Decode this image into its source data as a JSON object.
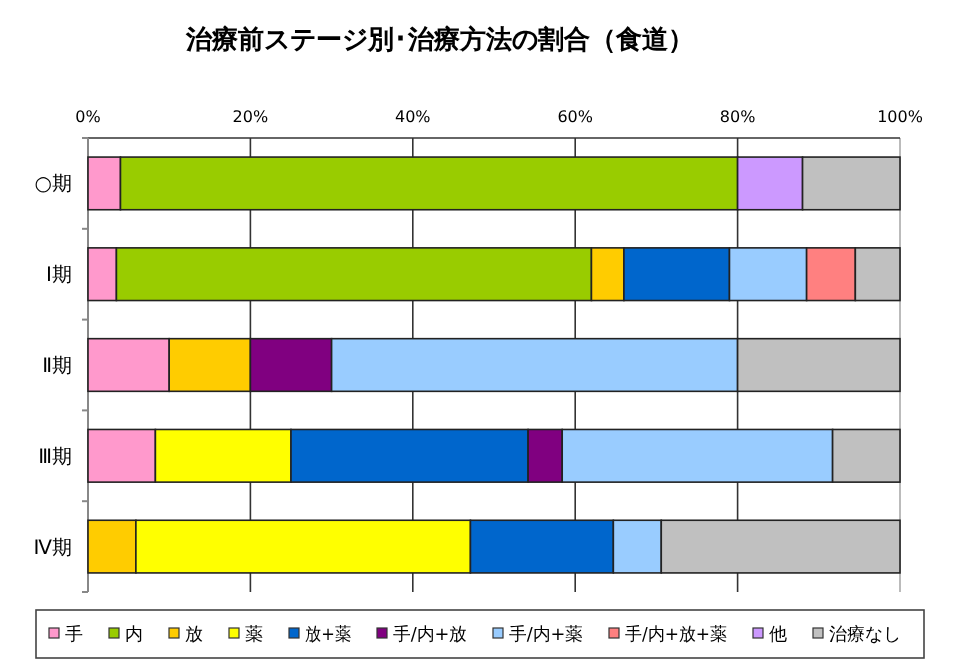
{
  "chart_data": {
    "type": "bar",
    "orientation": "horizontal",
    "stacked": true,
    "title": "治療前ステージ別･治療方法の割合（食道）",
    "categories": [
      "○期",
      "Ⅰ期",
      "Ⅱ期",
      "Ⅲ期",
      "Ⅳ期"
    ],
    "series": [
      {
        "name": "手",
        "color": "#ff99cc",
        "values": [
          4,
          3.5,
          10,
          8.3,
          null
        ]
      },
      {
        "name": "内",
        "color": "#99cc00",
        "values": [
          76,
          58.5,
          null,
          null,
          null
        ]
      },
      {
        "name": "放",
        "color": "#ffcc00",
        "values": [
          null,
          4,
          10,
          null,
          5.9
        ]
      },
      {
        "name": "薬",
        "color": "#ffff00",
        "values": [
          null,
          null,
          null,
          16.7,
          41.2
        ]
      },
      {
        "name": "放+薬",
        "color": "#0066cc",
        "values": [
          null,
          13,
          null,
          29.2,
          17.6
        ]
      },
      {
        "name": "手/内+放",
        "color": "#800080",
        "values": [
          null,
          null,
          10,
          4.2,
          null
        ]
      },
      {
        "name": "手/内+薬",
        "color": "#99ccff",
        "values": [
          null,
          9.5,
          50,
          33.3,
          5.9
        ]
      },
      {
        "name": "手/内+放+薬",
        "color": "#ff8080",
        "values": [
          null,
          6,
          null,
          null,
          null
        ]
      },
      {
        "name": "他",
        "color": "#cc99ff",
        "values": [
          8,
          null,
          null,
          null,
          null
        ]
      },
      {
        "name": "治療なし",
        "color": "#c0c0c0",
        "values": [
          12,
          5.5,
          20,
          8.3,
          29.4
        ]
      }
    ],
    "xlim": [
      0,
      100
    ],
    "xticks": [
      {
        "value": 0,
        "label": "0%"
      },
      {
        "value": 20,
        "label": "20%"
      },
      {
        "value": 40,
        "label": "40%"
      },
      {
        "value": 60,
        "label": "60%"
      },
      {
        "value": 80,
        "label": "80%"
      },
      {
        "value": 100,
        "label": "100%"
      }
    ],
    "grid": "x",
    "legend": "bottom"
  }
}
